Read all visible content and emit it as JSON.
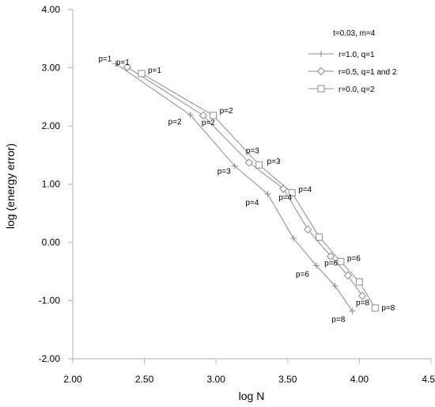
{
  "chart_data": {
    "type": "line",
    "xlabel": "log N",
    "ylabel": "log (energy error)",
    "xlim": [
      2.0,
      4.5
    ],
    "ylim": [
      -2.0,
      4.0
    ],
    "x_ticks": [
      "2.00",
      "2.50",
      "3.00",
      "3.50",
      "4.00",
      "4.50"
    ],
    "y_ticks": [
      "-2.00",
      "-1.00",
      "0.00",
      "1.00",
      "2.00",
      "3.00",
      "4.00"
    ],
    "grid": false,
    "legend_position": "top-right",
    "legend_title": "t=0.03, m=4",
    "series": [
      {
        "name": "r=1.0, q=1",
        "marker": "plus",
        "points": [
          {
            "x": 2.3,
            "y": 3.07
          },
          {
            "x": 2.82,
            "y": 2.19
          },
          {
            "x": 3.13,
            "y": 1.31
          },
          {
            "x": 3.36,
            "y": 0.83
          },
          {
            "x": 3.54,
            "y": 0.07
          },
          {
            "x": 3.7,
            "y": -0.4
          },
          {
            "x": 3.83,
            "y": -0.75
          },
          {
            "x": 3.95,
            "y": -1.18
          }
        ]
      },
      {
        "name": "r=0.5, q=1 and 2",
        "marker": "diamond",
        "points": [
          {
            "x": 2.38,
            "y": 3.01
          },
          {
            "x": 2.91,
            "y": 2.18
          },
          {
            "x": 3.23,
            "y": 1.37
          },
          {
            "x": 3.47,
            "y": 0.92
          },
          {
            "x": 3.64,
            "y": 0.22
          },
          {
            "x": 3.8,
            "y": -0.24
          },
          {
            "x": 3.92,
            "y": -0.57
          },
          {
            "x": 4.02,
            "y": -0.92
          }
        ]
      },
      {
        "name": "r=0.0, q=2",
        "marker": "square",
        "points": [
          {
            "x": 2.48,
            "y": 2.9
          },
          {
            "x": 2.98,
            "y": 2.18
          },
          {
            "x": 3.3,
            "y": 1.33
          },
          {
            "x": 3.53,
            "y": 0.85
          },
          {
            "x": 3.72,
            "y": 0.09
          },
          {
            "x": 3.87,
            "y": -0.33
          },
          {
            "x": 4.0,
            "y": -0.68
          },
          {
            "x": 4.11,
            "y": -1.13
          }
        ]
      }
    ],
    "annotations": [
      {
        "text": "p=1",
        "x": 2.3,
        "y": 3.07
      },
      {
        "text": "p=1",
        "x": 2.38,
        "y": 3.01
      },
      {
        "text": "p=1",
        "x": 2.48,
        "y": 2.9
      },
      {
        "text": "p=2",
        "x": 2.82,
        "y": 2.19
      },
      {
        "text": "p=2",
        "x": 2.91,
        "y": 2.18
      },
      {
        "text": "p=2",
        "x": 2.98,
        "y": 2.18
      },
      {
        "text": "p=3",
        "x": 3.13,
        "y": 1.31
      },
      {
        "text": "p=3",
        "x": 3.23,
        "y": 1.37
      },
      {
        "text": "p=3",
        "x": 3.3,
        "y": 1.33
      },
      {
        "text": "p=4",
        "x": 3.36,
        "y": 0.83
      },
      {
        "text": "p=4",
        "x": 3.47,
        "y": 0.92
      },
      {
        "text": "p=4",
        "x": 3.53,
        "y": 0.85
      },
      {
        "text": "p=6",
        "x": 3.7,
        "y": -0.4
      },
      {
        "text": "p=6",
        "x": 3.8,
        "y": -0.24
      },
      {
        "text": "p=6",
        "x": 3.87,
        "y": -0.33
      },
      {
        "text": "p=8",
        "x": 3.95,
        "y": -1.18
      },
      {
        "text": "p=8",
        "x": 4.02,
        "y": -0.92
      },
      {
        "text": "p=8",
        "x": 4.11,
        "y": -1.13
      }
    ],
    "colors": {
      "line": "#8c8c8c",
      "marker": "#8c8c8c",
      "axis": "#b0b0b0",
      "text": "#000000"
    }
  }
}
